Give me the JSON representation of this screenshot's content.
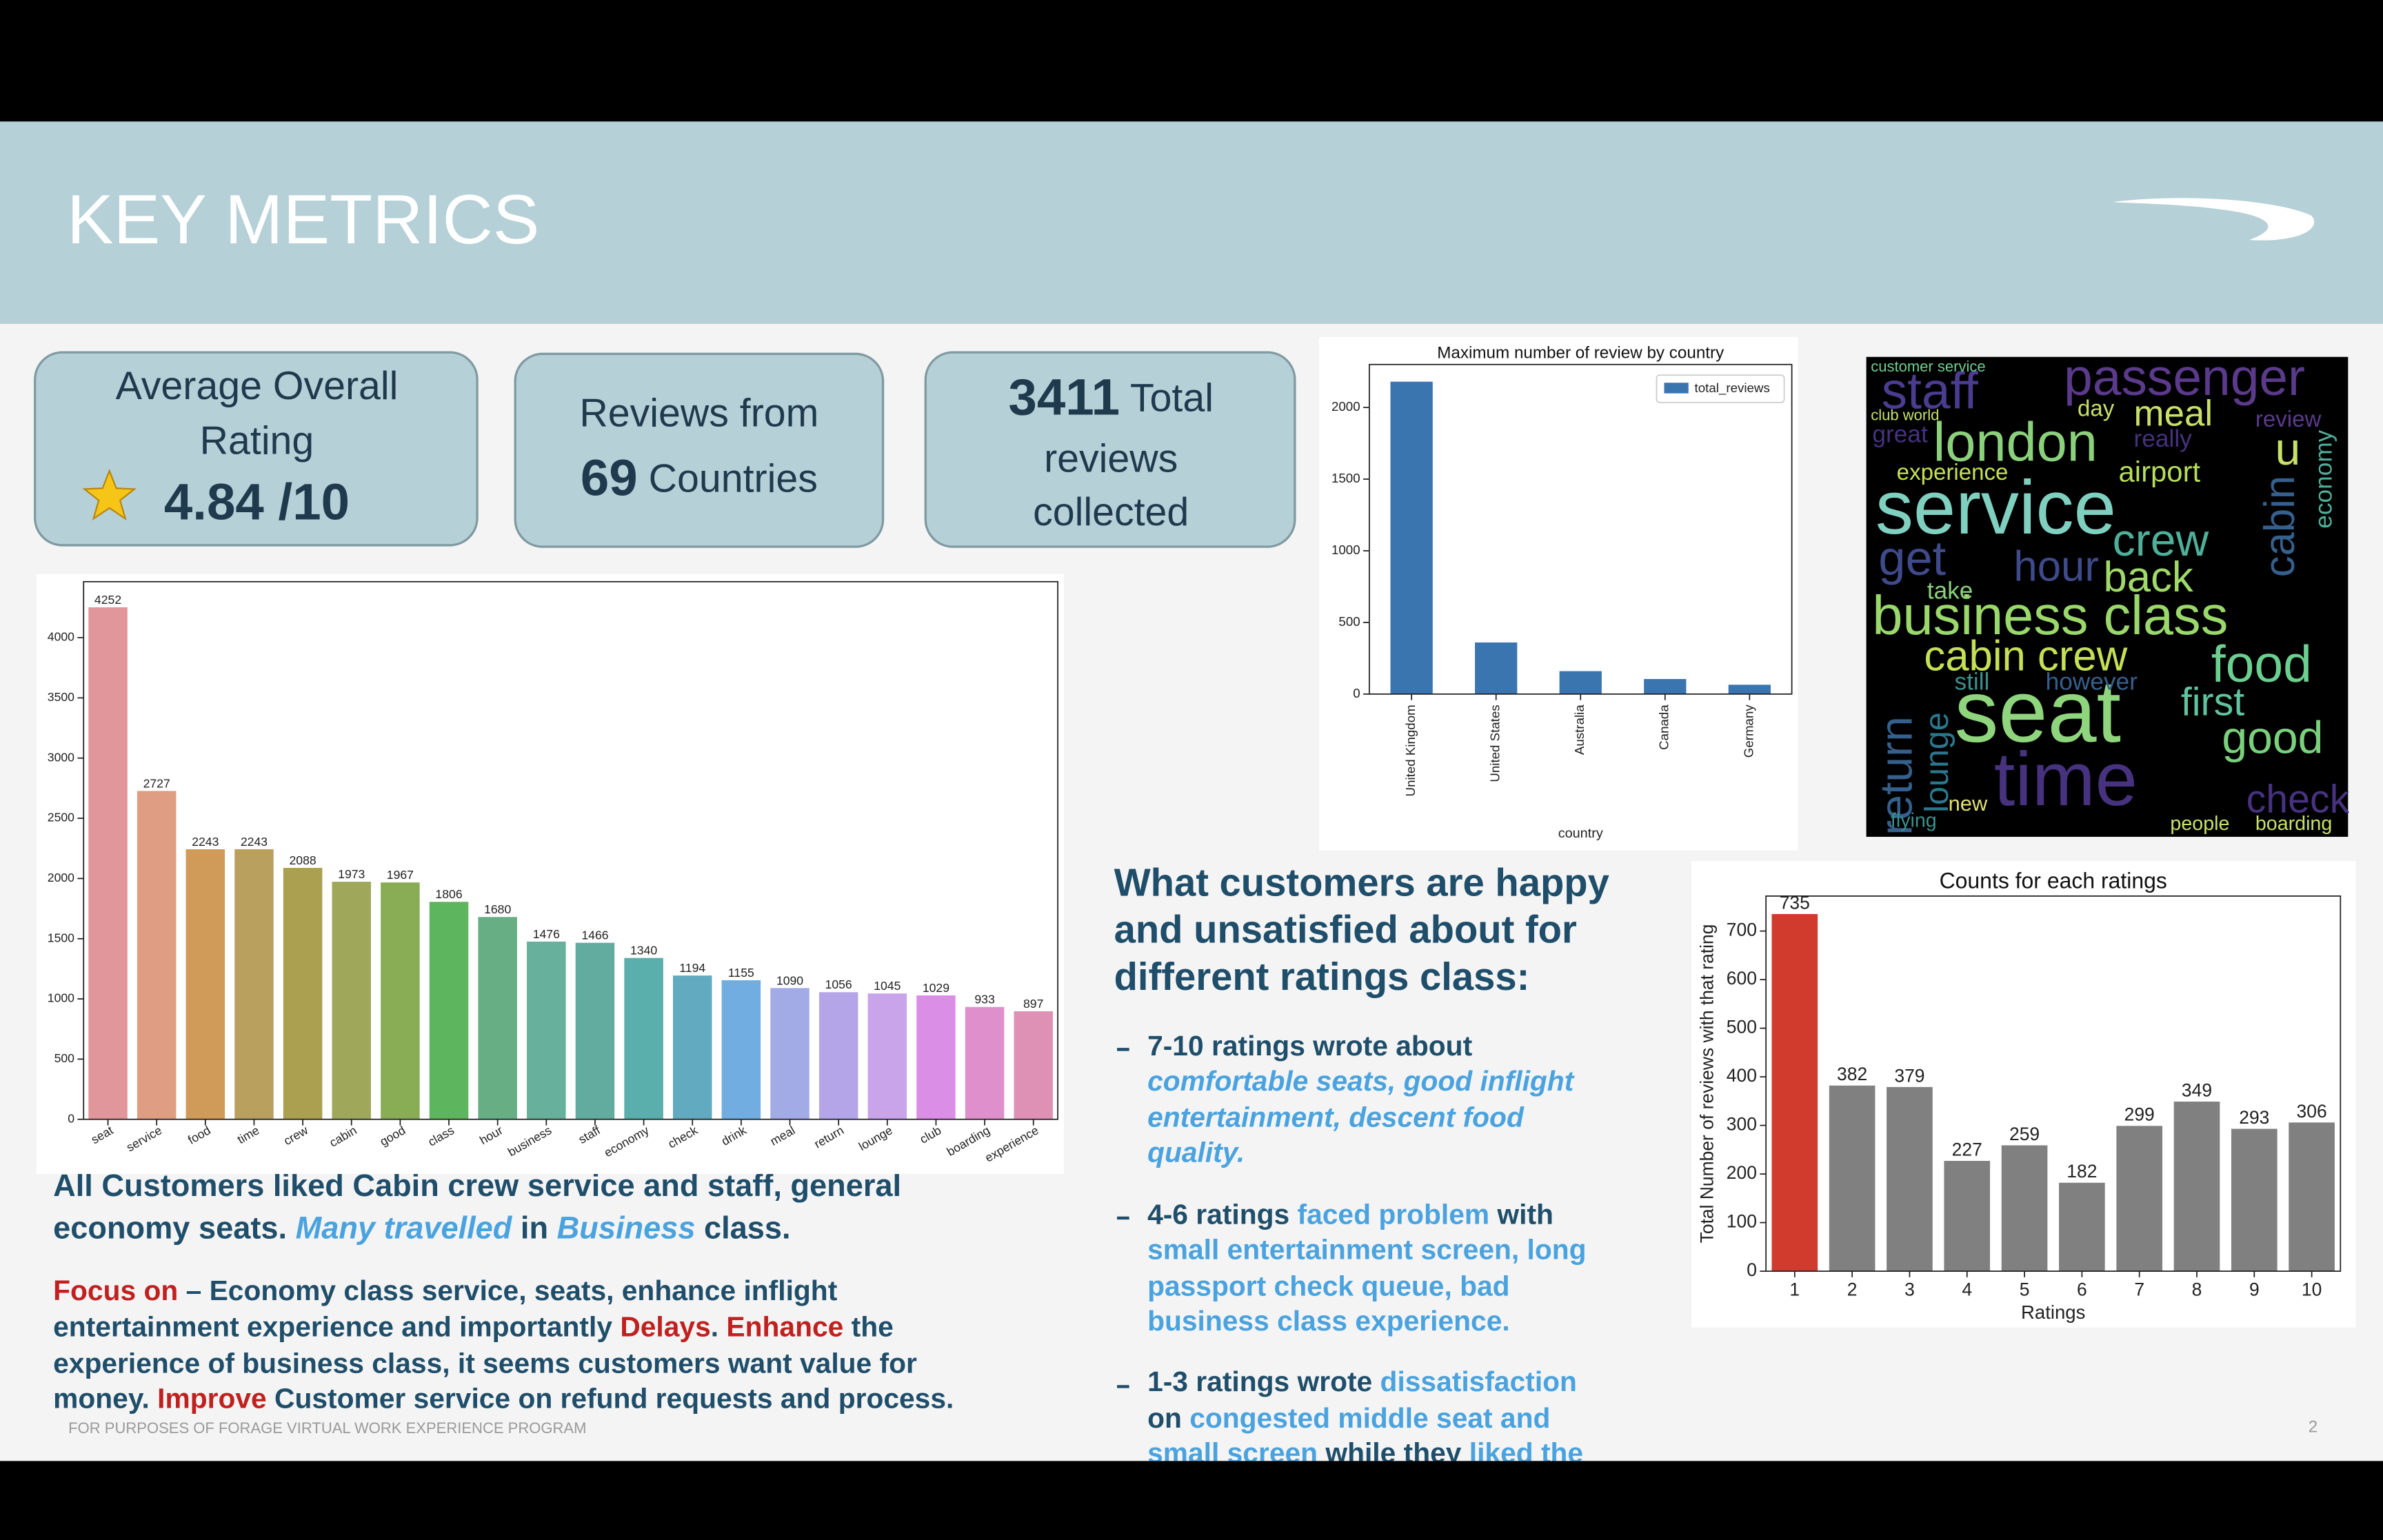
{
  "header": {
    "title": "KEY METRICS"
  },
  "metrics": [
    {
      "lines": [
        [
          {
            "text": "Average Overall",
            "style": "normal"
          }
        ],
        [
          {
            "text": "Rating",
            "style": "normal"
          }
        ],
        [
          {
            "text": "4.84 /10",
            "style": "value"
          }
        ]
      ]
    },
    {
      "lines": [
        [
          {
            "text": "Reviews from",
            "style": "normal"
          }
        ],
        [
          {
            "text": "69",
            "style": "value"
          },
          {
            "text": " Countries",
            "style": "normal"
          }
        ]
      ]
    },
    {
      "lines": [
        [
          {
            "text": "3411",
            "style": "value"
          },
          {
            "text": " Total",
            "style": "normal"
          }
        ],
        [
          {
            "text": "reviews",
            "style": "normal"
          }
        ],
        [
          {
            "text": "collected",
            "style": "normal"
          }
        ]
      ]
    }
  ],
  "chart_data": [
    {
      "type": "bar",
      "categories": [
        "seat",
        "service",
        "food",
        "time",
        "crew",
        "cabin",
        "good",
        "class",
        "hour",
        "business",
        "staff",
        "economy",
        "check",
        "drink",
        "meal",
        "return",
        "lounge",
        "club",
        "boarding",
        "experience"
      ],
      "values": [
        4252,
        2727,
        2243,
        2243,
        2088,
        1973,
        1967,
        1806,
        1680,
        1476,
        1466,
        1340,
        1194,
        1155,
        1090,
        1056,
        1045,
        1029,
        933,
        897
      ],
      "colors": [
        "#e0969b",
        "#df9e83",
        "#d09a58",
        "#b9a05f",
        "#aaa04f",
        "#9fa85a",
        "#88ad55",
        "#5db55d",
        "#67ae85",
        "#67b09b",
        "#62ab9f",
        "#5aaeab",
        "#61aac0",
        "#71ade0",
        "#a3abe6",
        "#b4a5e8",
        "#c9a4eb",
        "#db8ee6",
        "#de8fcc",
        "#de91b5"
      ],
      "ylim": [
        0,
        4465
      ],
      "yticks": [
        0,
        500,
        1000,
        1500,
        2000,
        2500,
        3000,
        3500,
        4000
      ],
      "data_labels": true
    },
    {
      "type": "bar",
      "title": "Maximum number of review by country",
      "categories": [
        "United Kingdom",
        "United States",
        "Australia",
        "Canada",
        "Germany"
      ],
      "series": [
        {
          "name": "total_reviews",
          "color": "#3a75b0",
          "values": [
            2180,
            360,
            160,
            105,
            65
          ]
        }
      ],
      "xlabel": "country",
      "ylim": [
        0,
        2300
      ],
      "yticks": [
        0,
        500,
        1000,
        1500,
        2000
      ],
      "legend": "upper right"
    },
    {
      "type": "bar",
      "title": "Counts for each ratings",
      "categories": [
        "1",
        "2",
        "3",
        "4",
        "5",
        "6",
        "7",
        "8",
        "9",
        "10"
      ],
      "values": [
        735,
        382,
        379,
        227,
        259,
        182,
        299,
        349,
        293,
        306
      ],
      "colors": [
        "#d03b2e",
        "#808080",
        "#808080",
        "#808080",
        "#808080",
        "#808080",
        "#808080",
        "#808080",
        "#808080",
        "#808080"
      ],
      "xlabel": "Ratings",
      "ylabel": "Total Number of reviews with that rating",
      "ylim": [
        0,
        772
      ],
      "yticks": [
        0,
        100,
        200,
        300,
        400,
        500,
        600,
        700
      ],
      "data_labels": true
    }
  ],
  "word_cloud": {
    "words": [
      "passenger",
      "staff",
      "meal",
      "london",
      "service",
      "airport",
      "crew",
      "get",
      "hour",
      "back",
      "business class",
      "cabin crew",
      "food",
      "seat",
      "first",
      "good",
      "time",
      "return",
      "lounge",
      "check",
      "flying",
      "people",
      "boarding",
      "new",
      "experience",
      "great",
      "day",
      "really",
      "take",
      "however",
      "still",
      "economy",
      "cabin",
      "review",
      "club world",
      "customer service",
      "u"
    ]
  },
  "summary": {
    "lines": [
      [
        {
          "text": "All Customers liked Cabin crew service and staff, general",
          "style": "normal"
        }
      ],
      [
        {
          "text": "economy seats. ",
          "style": "normal"
        },
        {
          "text": "Many travelled",
          "style": "highlight-italic"
        },
        {
          "text": " in ",
          "style": "normal"
        },
        {
          "text": "Business",
          "style": "highlight-italic"
        },
        {
          "text": " class.",
          "style": "normal"
        }
      ]
    ]
  },
  "focus": {
    "lines": [
      [
        {
          "text": "Focus on",
          "style": "alert"
        },
        {
          "text": " – Economy class service, seats, enhance inflight",
          "style": "normal"
        }
      ],
      [
        {
          "text": "entertainment experience and importantly ",
          "style": "normal"
        },
        {
          "text": "Delays",
          "style": "alert"
        },
        {
          "text": ". ",
          "style": "normal"
        },
        {
          "text": "Enhance",
          "style": "alert"
        },
        {
          "text": " the",
          "style": "normal"
        }
      ],
      [
        {
          "text": "experience of business class, it seems customers want value for",
          "style": "normal"
        }
      ],
      [
        {
          "text": "money. ",
          "style": "normal"
        },
        {
          "text": "Improve",
          "style": "alert"
        },
        {
          "text": " Customer service on refund requests and process.",
          "style": "normal"
        }
      ]
    ]
  },
  "ratings_notes": {
    "heading": {
      "lines": [
        [
          {
            "text": "What customers are happy",
            "style": "normal"
          }
        ],
        [
          {
            "text": "and unsatisfied about for",
            "style": "normal"
          }
        ],
        [
          {
            "text": "different ratings class:",
            "style": "normal"
          }
        ]
      ]
    },
    "bullets": [
      {
        "lines": [
          [
            {
              "text": "7-10 ratings wrote about",
              "style": "normal"
            }
          ],
          [
            {
              "text": "comfortable seats, good inflight",
              "style": "highlight-italic"
            }
          ],
          [
            {
              "text": "entertainment, descent food",
              "style": "highlight-italic"
            }
          ],
          [
            {
              "text": "quality.",
              "style": "highlight-italic"
            }
          ]
        ]
      },
      {
        "lines": [
          [
            {
              "text": "4-6 ratings ",
              "style": "normal"
            },
            {
              "text": "faced problem",
              "style": "highlight"
            },
            {
              "text": " with",
              "style": "normal"
            }
          ],
          [
            {
              "text": "small entertainment screen, long",
              "style": "highlight"
            }
          ],
          [
            {
              "text": "passport check queue, bad",
              "style": "highlight"
            }
          ],
          [
            {
              "text": "business class experience.",
              "style": "highlight"
            }
          ]
        ]
      },
      {
        "lines": [
          [
            {
              "text": "1-3 ratings wrote ",
              "style": "normal"
            },
            {
              "text": "dissatisfaction",
              "style": "highlight"
            }
          ],
          [
            {
              "text": "on ",
              "style": "normal"
            },
            {
              "text": "congested middle seat and",
              "style": "highlight"
            }
          ],
          [
            {
              "text": "small screen",
              "style": "highlight"
            },
            {
              "text": " while they ",
              "style": "normal"
            },
            {
              "text": "liked the",
              "style": "highlight"
            }
          ]
        ]
      }
    ]
  },
  "footer": {
    "note": "FOR PURPOSES OF FORAGE VIRTUAL WORK EXPERIENCE PROGRAM",
    "page": "2"
  }
}
